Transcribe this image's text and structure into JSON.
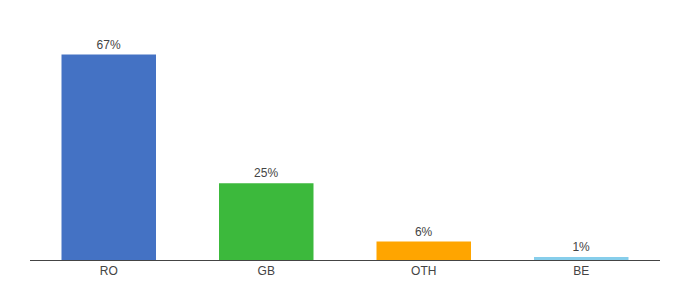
{
  "chart_data": {
    "type": "bar",
    "categories": [
      "RO",
      "GB",
      "OTH",
      "BE"
    ],
    "values": [
      67,
      25,
      6,
      1
    ],
    "value_labels": [
      "67%",
      "25%",
      "6%",
      "1%"
    ],
    "colors": [
      "#4472C4",
      "#3CB93C",
      "#FFA500",
      "#87CEEB"
    ],
    "ylim": [
      0,
      75
    ],
    "data_labels": true,
    "tick_labels": "x",
    "grid": false
  }
}
